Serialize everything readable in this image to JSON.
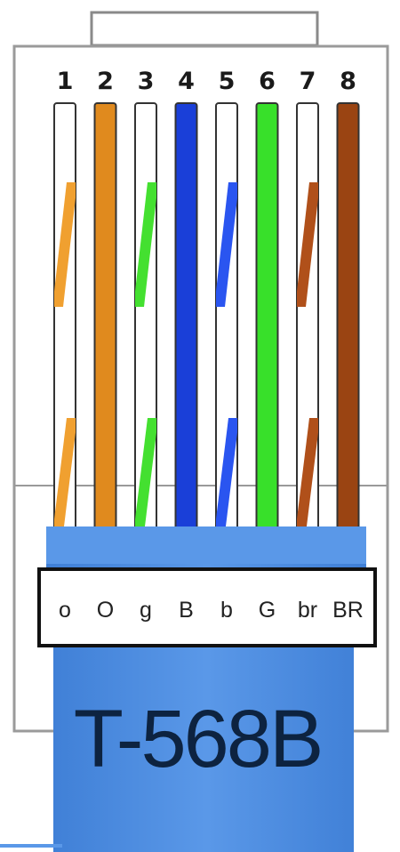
{
  "diagram": {
    "standard": "T-568B",
    "pins": [
      {
        "number": "1",
        "code": "o",
        "base": "#ffffff",
        "stripe": "#f0a030",
        "striped": true
      },
      {
        "number": "2",
        "code": "O",
        "base": "#e08a1e",
        "stripe": "#e08a1e",
        "striped": false
      },
      {
        "number": "3",
        "code": "g",
        "base": "#ffffff",
        "stripe": "#44e030",
        "striped": true
      },
      {
        "number": "4",
        "code": "B",
        "base": "#1a3fd8",
        "stripe": "#1a3fd8",
        "striped": false
      },
      {
        "number": "5",
        "code": "b",
        "base": "#ffffff",
        "stripe": "#2a55f0",
        "striped": true
      },
      {
        "number": "6",
        "code": "G",
        "base": "#38e02a",
        "stripe": "#38e02a",
        "striped": false
      },
      {
        "number": "7",
        "code": "br",
        "base": "#ffffff",
        "stripe": "#b0501a",
        "striped": true
      },
      {
        "number": "8",
        "code": "BR",
        "base": "#9a4412",
        "stripe": "#9a4412",
        "striped": false
      }
    ],
    "colors": {
      "boot": "#4f8fe2",
      "boot_dark": "#3a74c8",
      "housing_border": "#8a8a8a",
      "label_border": "#111111",
      "text_dark": "#0d2340"
    }
  }
}
